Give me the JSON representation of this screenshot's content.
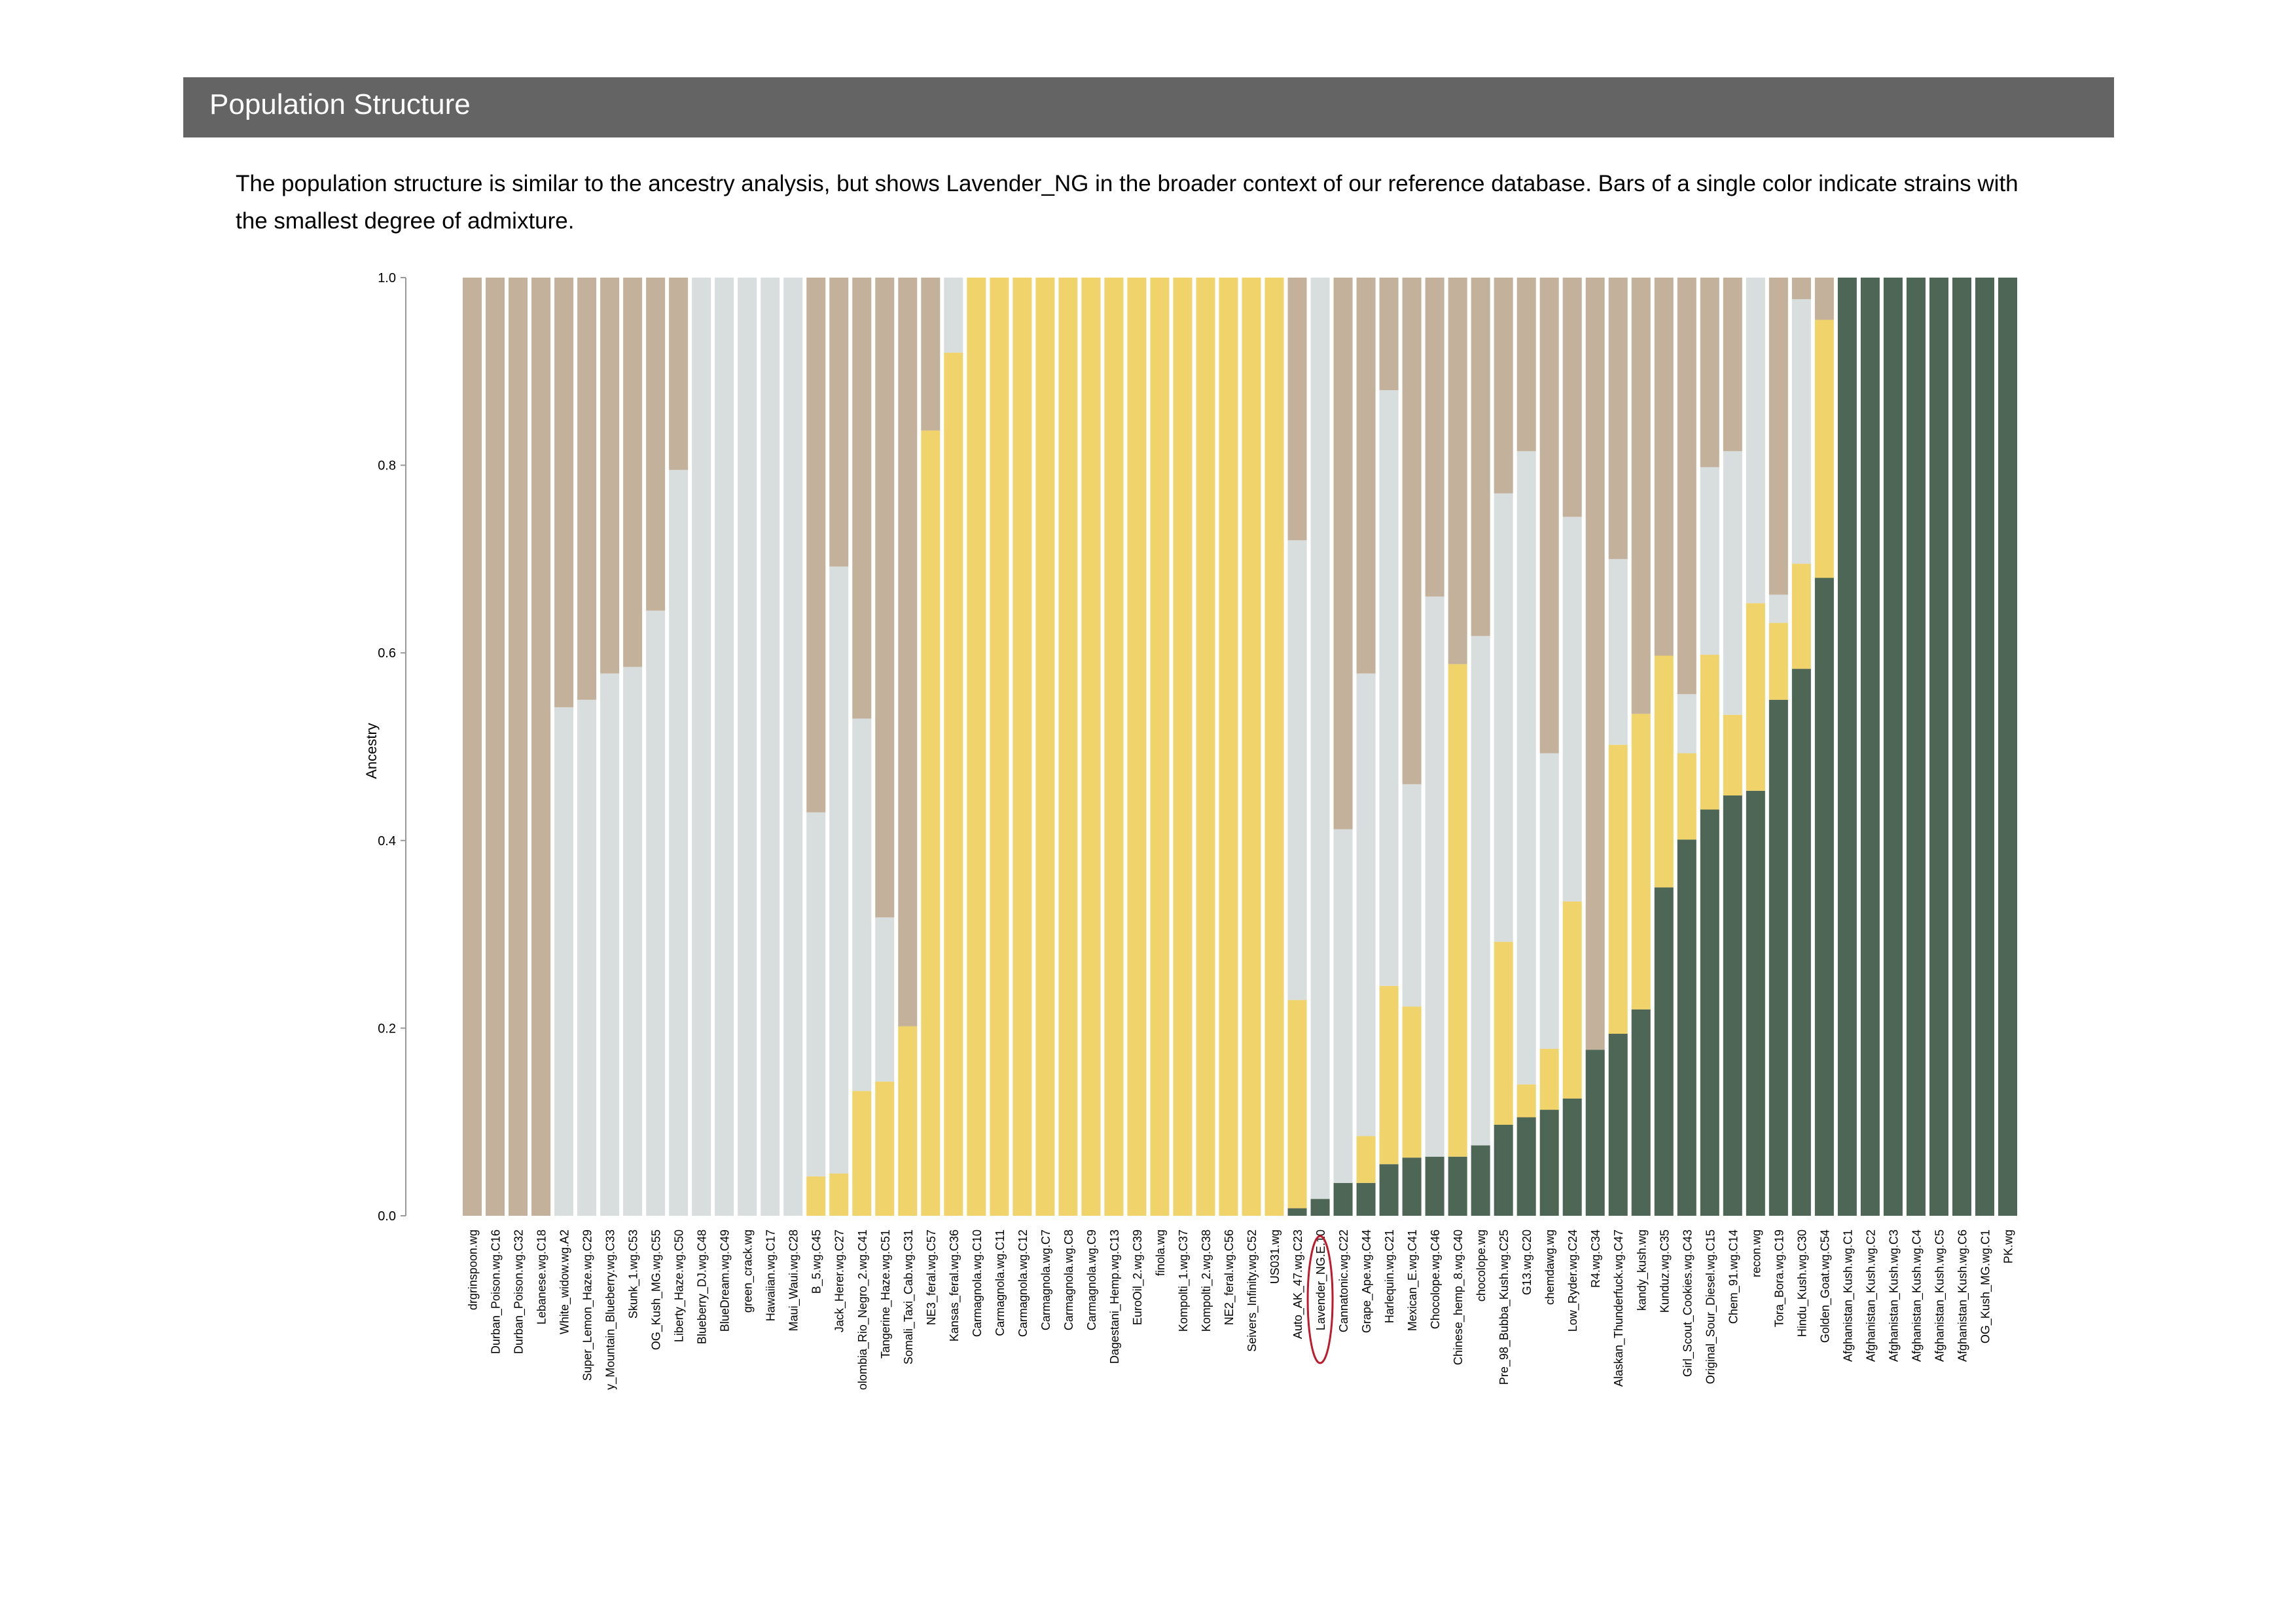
{
  "section": {
    "title": "Population Structure",
    "description": "The population structure is similar to the ancestry analysis, but shows Lavender_NG in the broader context of our reference database. Bars of a single color indicate strains with the smallest degree of admixture."
  },
  "chart_data": {
    "type": "bar",
    "stacked": true,
    "title": "",
    "xlabel": "",
    "ylabel": "Ancestry",
    "ylim": [
      0,
      1
    ],
    "yticks": [
      "0.0",
      "0.2",
      "0.4",
      "0.6",
      "0.8",
      "1.0"
    ],
    "highlight": "Lavender_NG.E.10",
    "categories": [
      "drgrinspoon.wg",
      "Durban_Poison.wg.C16",
      "Durban_Poison.wg.C32",
      "Lebanese.wg.C18",
      "White_widow.wg.A2",
      "Super_Lemon_Haze.wg.C29",
      "y_Mountain_Blueberry.wg.C33",
      "Skunk_1.wg.C53",
      "OG_Kush_MG.wg.C55",
      "Liberty_Haze.wg.C50",
      "Blueberry_DJ.wg.C48",
      "BlueDream.wg.C49",
      "green_crack.wg",
      "Hawaiian.wg.C17",
      "Maui_Waui.wg.C28",
      "B_5.wg.C45",
      "Jack_Herer.wg.C27",
      "olombia_Rio_Negro_2.wg.C41",
      "Tangerine_Haze.wg.C51",
      "Somali_Taxi_Cab.wg.C31",
      "NE3_feral.wg.C57",
      "Kansas_feral.wg.C36",
      "Carmagnola.wg.C10",
      "Carmagnola.wg.C11",
      "Carmagnola.wg.C12",
      "Carmagnola.wg.C7",
      "Carmagnola.wg.C8",
      "Carmagnola.wg.C9",
      "Dagestani_Hemp.wg.C13",
      "EuroOil_2.wg.C39",
      "finola.wg",
      "Kompolti_1.wg.C37",
      "Kompolti_2.wg.C38",
      "NE2_feral.wg.C56",
      "Seivers_Infinity.wg.C52",
      "US031.wg",
      "Auto_AK_47.wg.C23",
      "Lavender_NG.E.10",
      "Cannatonic.wg.C22",
      "Grape_Ape.wg.C44",
      "Harlequin.wg.C21",
      "Mexican_E.wg.C41",
      "Chocolope.wg.C46",
      "Chinese_hemp_8.wg.C40",
      "chocolope.wg",
      "Pre_98_Bubba_Kush.wg.C25",
      "G13.wg.C20",
      "chemdawg.wg",
      "Low_Ryder.wg.C24",
      "R4.wg.C34",
      "Alaskan_Thunderfuck.wg.C47",
      "kandy_kush.wg",
      "Kunduz.wg.C35",
      "Girl_Scout_Cookies.wg.C43",
      "Original_Sour_Diesel.wg.C15",
      "Chem_91.wg.C14",
      "recon.wg",
      "Tora_Bora.wg.C19",
      "Hindu_Kush.wg.C30",
      "Golden_Goat.wg.C54",
      "Afghanistan_Kush.wg.C1",
      "Afghanistan_Kush.wg.C2",
      "Afghanistan_Kush.wg.C3",
      "Afghanistan_Kush.wg.C4",
      "Afghanistan_Kush.wg.C5",
      "Afghanistan_Kush.wg.C6",
      "OG_Kush_MG.wg.C1",
      "PK.wg"
    ],
    "series": [
      {
        "color": "#4e6656",
        "values": [
          0,
          0,
          0,
          0,
          0,
          0,
          0,
          0,
          0,
          0,
          0,
          0,
          0,
          0,
          0,
          0,
          0,
          0,
          0,
          0,
          0,
          0,
          0,
          0,
          0,
          0,
          0,
          0,
          0,
          0,
          0,
          0,
          0,
          0,
          0,
          0,
          0.008,
          0.018,
          0.035,
          0.035,
          0.055,
          0.062,
          0.063,
          0.063,
          0.075,
          0.097,
          0.105,
          0.113,
          0.125,
          0.177,
          0.194,
          0.22,
          0.35,
          0.401,
          0.433,
          0.448,
          0.453,
          0.55,
          0.583,
          0.68,
          1,
          1,
          1,
          1,
          1,
          1,
          1,
          1
        ]
      },
      {
        "color": "#f0d36b",
        "values": [
          0,
          0,
          0,
          0,
          0,
          0,
          0,
          0,
          0,
          0,
          0,
          0,
          0,
          0,
          0,
          0.042,
          0.045,
          0.133,
          0.143,
          0.202,
          0.837,
          0.92,
          1,
          1,
          1,
          1,
          1,
          1,
          1,
          1,
          1,
          1,
          1,
          1,
          1,
          1,
          0.222,
          0,
          0,
          0.05,
          0.19,
          0.161,
          0,
          0.525,
          0,
          0.195,
          0.035,
          0.065,
          0.21,
          0,
          0.308,
          0.315,
          0.247,
          0.092,
          0.165,
          0.086,
          0.2,
          0.082,
          0.112,
          0.275,
          0,
          0,
          0,
          0,
          0,
          0,
          0,
          0
        ]
      },
      {
        "color": "#d8dddd",
        "values": [
          0,
          0,
          0,
          0,
          0.542,
          0.55,
          0.578,
          0.585,
          0.645,
          0.795,
          1,
          1,
          1,
          1,
          1,
          0.388,
          0.647,
          0.397,
          0.175,
          0,
          0,
          0.08,
          0,
          0,
          0,
          0,
          0,
          0,
          0,
          0,
          0,
          0,
          0,
          0,
          0,
          0,
          0.49,
          0.982,
          0.377,
          0.493,
          0.635,
          0.237,
          0.597,
          0,
          0.543,
          0.478,
          0.675,
          0.315,
          0.41,
          0,
          0.198,
          0,
          0,
          0.063,
          0.2,
          0.281,
          0.347,
          0.03,
          0.282,
          0,
          0,
          0,
          0,
          0,
          0,
          0,
          0,
          0
        ]
      },
      {
        "color": "#c3b19b",
        "values": [
          1,
          1,
          1,
          1,
          0.458,
          0.45,
          0.422,
          0.415,
          0.355,
          0.205,
          0,
          0,
          0,
          0,
          0,
          0.57,
          0.308,
          0.47,
          0.682,
          0.798,
          0.163,
          0,
          0,
          0,
          0,
          0,
          0,
          0,
          0,
          0,
          0,
          0,
          0,
          0,
          0,
          0,
          0.28,
          0,
          0.588,
          0.422,
          0.12,
          0.54,
          0.34,
          0.412,
          0.382,
          0.23,
          0.185,
          0.507,
          0.255,
          0.823,
          0.3,
          0.465,
          0.403,
          0.444,
          0.202,
          0.185,
          0,
          0.338,
          0.023,
          0.045,
          0,
          0,
          0,
          0,
          0,
          0,
          0,
          0
        ]
      }
    ]
  }
}
